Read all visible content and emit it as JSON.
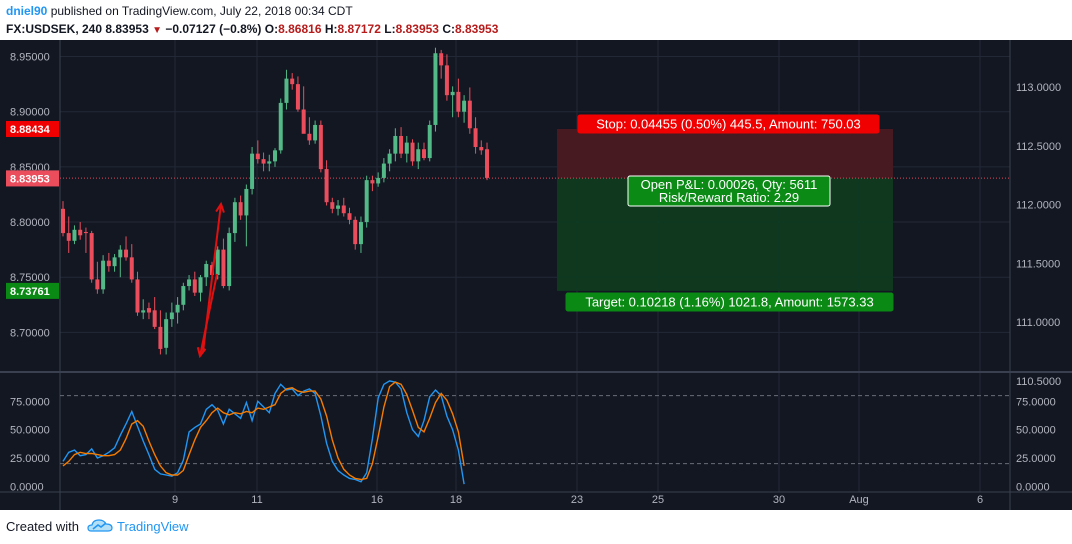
{
  "header": {
    "author": "dniel90",
    "published_text": "published on TradingView.com, July 22, 2018 00:34 CDT",
    "symbol": "FX:USDSEK, 240",
    "last": "8.83953",
    "change": "−0.07127 (−0.8%)",
    "o_label": "O:",
    "o_value": "8.86816",
    "h_label": "H:",
    "h_value": "8.87172",
    "l_label": "L:",
    "l_value": "8.83953",
    "c_label": "C:",
    "c_value": "8.83953"
  },
  "footer": {
    "created_with": "Created with",
    "brand": "TradingView"
  },
  "colors": {
    "background": "#131722",
    "up": "#53b987",
    "down": "#eb4d5c",
    "stoch_k": "#2196f3",
    "stoch_d": "#f57c00",
    "stop_zone": "#4a1a22",
    "target_zone": "#0f3a20",
    "stop_label": "#f00000",
    "target_label": "#0a8a14",
    "arrow": "#e01010"
  },
  "chart_data": [
    {
      "type": "candlestick",
      "title": "FX:USDSEK, 240",
      "ylim": [
        8.665,
        8.965
      ],
      "left_axis_ticks": [
        "8.95000",
        "8.90000",
        "8.85000",
        "8.80000",
        "8.75000",
        "8.70000"
      ],
      "left_axis_tick_values": [
        8.95,
        8.9,
        8.85,
        8.8,
        8.75,
        8.7
      ],
      "right_axis_ticks": [
        "113.0000",
        "112.5000",
        "112.0000",
        "111.5000",
        "111.0000",
        "110.5000"
      ],
      "right_axis_tick_values": [
        113.0,
        112.5,
        112.0,
        111.5,
        111.0,
        110.5
      ],
      "x_ticks": [
        "9",
        "11",
        "16",
        "18",
        "23",
        "25",
        "30",
        "Aug",
        "6"
      ],
      "price_badges": [
        {
          "label": "8.88434",
          "value": 8.88434,
          "kind": "stop"
        },
        {
          "label": "8.83979",
          "value": 8.83979,
          "kind": "entry"
        },
        {
          "label": "8.83953",
          "value": 8.83953,
          "kind": "last"
        },
        {
          "label": "8.73761",
          "value": 8.73761,
          "kind": "target"
        }
      ],
      "candles": [
        [
          8.812,
          8.819,
          8.787,
          8.79
        ],
        [
          8.79,
          8.805,
          8.772,
          8.783
        ],
        [
          8.783,
          8.797,
          8.78,
          8.793
        ],
        [
          8.793,
          8.8,
          8.784,
          8.788
        ],
        [
          8.791,
          8.795,
          8.772,
          8.79
        ],
        [
          8.79,
          8.792,
          8.745,
          8.748
        ],
        [
          8.748,
          8.764,
          8.735,
          8.739
        ],
        [
          8.739,
          8.77,
          8.735,
          8.765
        ],
        [
          8.765,
          8.772,
          8.755,
          8.76
        ],
        [
          8.76,
          8.771,
          8.755,
          8.768
        ],
        [
          8.768,
          8.779,
          8.75,
          8.775
        ],
        [
          8.775,
          8.787,
          8.765,
          8.768
        ],
        [
          8.768,
          8.78,
          8.745,
          8.748
        ],
        [
          8.748,
          8.755,
          8.715,
          8.718
        ],
        [
          8.718,
          8.73,
          8.712,
          8.72
        ],
        [
          8.722,
          8.727,
          8.712,
          8.718
        ],
        [
          8.72,
          8.732,
          8.703,
          8.705
        ],
        [
          8.705,
          8.72,
          8.68,
          8.685
        ],
        [
          8.686,
          8.718,
          8.68,
          8.712
        ],
        [
          8.712,
          8.727,
          8.705,
          8.718
        ],
        [
          8.718,
          8.732,
          8.708,
          8.725
        ],
        [
          8.725,
          8.745,
          8.72,
          8.742
        ],
        [
          8.742,
          8.752,
          8.738,
          8.748
        ],
        [
          8.748,
          8.755,
          8.733,
          8.736
        ],
        [
          8.736,
          8.752,
          8.728,
          8.75
        ],
        [
          8.75,
          8.765,
          8.742,
          8.762
        ],
        [
          8.761,
          8.764,
          8.748,
          8.752
        ],
        [
          8.752,
          8.778,
          8.748,
          8.775
        ],
        [
          8.775,
          8.785,
          8.74,
          8.742
        ],
        [
          8.742,
          8.795,
          8.738,
          8.79
        ],
        [
          8.79,
          8.822,
          8.782,
          8.818
        ],
        [
          8.818,
          8.824,
          8.802,
          8.806
        ],
        [
          8.806,
          8.834,
          8.778,
          8.83
        ],
        [
          8.83,
          8.868,
          8.825,
          8.862
        ],
        [
          8.862,
          8.874,
          8.853,
          8.857
        ],
        [
          8.857,
          8.863,
          8.846,
          8.853
        ],
        [
          8.853,
          8.861,
          8.846,
          8.855
        ],
        [
          8.855,
          8.867,
          8.85,
          8.865
        ],
        [
          8.865,
          8.912,
          8.862,
          8.908
        ],
        [
          8.908,
          8.938,
          8.902,
          8.93
        ],
        [
          8.93,
          8.935,
          8.92,
          8.925
        ],
        [
          8.925,
          8.932,
          8.9,
          8.902
        ],
        [
          8.902,
          8.923,
          8.883,
          8.88
        ],
        [
          8.88,
          8.895,
          8.87,
          8.874
        ],
        [
          8.874,
          8.892,
          8.871,
          8.888
        ],
        [
          8.888,
          8.892,
          8.845,
          8.848
        ],
        [
          8.848,
          8.856,
          8.815,
          8.818
        ],
        [
          8.818,
          8.822,
          8.808,
          8.812
        ],
        [
          8.812,
          8.82,
          8.806,
          8.815
        ],
        [
          8.815,
          8.822,
          8.805,
          8.808
        ],
        [
          8.808,
          8.813,
          8.798,
          8.802
        ],
        [
          8.802,
          8.805,
          8.775,
          8.78
        ],
        [
          8.78,
          8.805,
          8.772,
          8.8
        ],
        [
          8.8,
          8.842,
          8.795,
          8.838
        ],
        [
          8.838,
          8.842,
          8.828,
          8.835
        ],
        [
          8.835,
          8.845,
          8.832,
          8.84
        ],
        [
          8.84,
          8.858,
          8.836,
          8.853
        ],
        [
          8.853,
          8.866,
          8.846,
          8.862
        ],
        [
          8.862,
          8.885,
          8.855,
          8.878
        ],
        [
          8.878,
          8.886,
          8.858,
          8.862
        ],
        [
          8.862,
          8.878,
          8.854,
          8.872
        ],
        [
          8.872,
          8.875,
          8.851,
          8.855
        ],
        [
          8.855,
          8.872,
          8.848,
          8.866
        ],
        [
          8.866,
          8.872,
          8.856,
          8.858
        ],
        [
          8.858,
          8.892,
          8.855,
          8.888
        ],
        [
          8.888,
          8.958,
          8.882,
          8.953
        ],
        [
          8.953,
          8.956,
          8.93,
          8.942
        ],
        [
          8.942,
          8.952,
          8.91,
          8.915
        ],
        [
          8.915,
          8.923,
          8.895,
          8.918
        ],
        [
          8.918,
          8.93,
          8.895,
          8.9
        ],
        [
          8.9,
          8.915,
          8.89,
          8.91
        ],
        [
          8.91,
          8.922,
          8.88,
          8.885
        ],
        [
          8.885,
          8.895,
          8.862,
          8.868
        ],
        [
          8.868,
          8.874,
          8.861,
          8.865
        ],
        [
          8.866,
          8.872,
          8.838,
          8.84
        ]
      ],
      "candle_format": [
        "open",
        "high",
        "low",
        "close"
      ],
      "position": {
        "type": "long",
        "entry": 8.83979,
        "stop": 8.88434,
        "target": 8.73761,
        "stop_label": "Stop: 0.04455 (0.50%) 445.5, Amount: 750.03",
        "pnl_label": "Open P&L: 0.00026, Qty: 5611",
        "ratio_label": "Risk/Reward Ratio: 2.29",
        "target_label": "Target: 0.10218 (1.16%) 1021.8, Amount: 1573.33"
      }
    },
    {
      "type": "line",
      "title": "Stochastic",
      "ylim": [
        -5,
        100
      ],
      "left_axis_ticks": [
        "75.0000",
        "50.0000",
        "25.0000",
        "0.0000"
      ],
      "right_axis_ticks": [
        "75.0000",
        "50.0000",
        "25.0000",
        "0.0000"
      ],
      "axis_tick_values": [
        75,
        50,
        25,
        0
      ],
      "bands": [
        80,
        20
      ],
      "series": [
        {
          "role": "%K",
          "values": [
            22,
            30,
            32,
            27,
            28,
            33,
            25,
            27,
            30,
            34,
            45,
            55,
            66,
            53,
            40,
            28,
            15,
            11,
            10,
            9,
            12,
            23,
            48,
            52,
            55,
            68,
            72,
            67,
            55,
            68,
            64,
            60,
            74,
            58,
            75,
            70,
            65,
            82,
            90,
            85,
            86,
            80,
            84,
            86,
            82,
            62,
            38,
            22,
            14,
            10,
            7,
            6,
            4,
            12,
            42,
            78,
            90,
            93,
            92,
            86,
            65,
            50,
            44,
            58,
            79,
            85,
            80,
            62,
            50,
            32,
            2
          ]
        },
        {
          "role": "%D",
          "values": [
            18,
            22,
            28,
            30,
            29,
            29,
            28,
            27,
            27,
            28,
            32,
            42,
            55,
            58,
            53,
            40,
            28,
            18,
            12,
            10,
            10,
            14,
            28,
            41,
            52,
            58,
            65,
            69,
            65,
            63,
            65,
            64,
            66,
            65,
            69,
            68,
            70,
            72,
            82,
            86,
            87,
            84,
            83,
            84,
            84,
            77,
            62,
            41,
            25,
            15,
            10,
            7,
            6,
            7,
            20,
            44,
            70,
            88,
            92,
            90,
            81,
            67,
            52,
            48,
            60,
            74,
            82,
            76,
            64,
            48,
            18
          ]
        }
      ]
    }
  ]
}
